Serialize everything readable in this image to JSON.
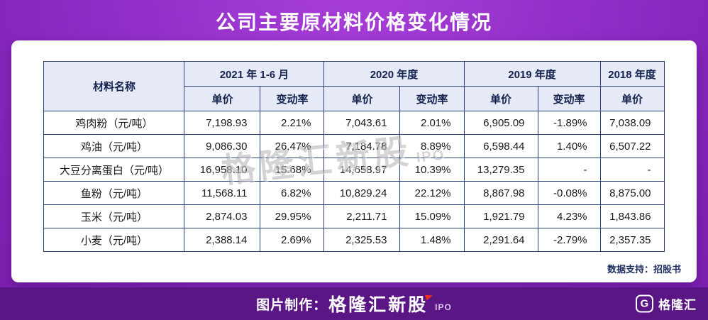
{
  "chart_data": {
    "type": "table",
    "title": "公司主要原材料价格变化情况",
    "material_header": "材料名称",
    "column_groups": [
      "2021 年 1-6 月",
      "2020 年度",
      "2019 年度",
      "2018 年度"
    ],
    "sub_columns": [
      "单价",
      "变动率",
      "单价",
      "变动率",
      "单价",
      "变动率",
      "单价"
    ],
    "rows": [
      {
        "name": "鸡肉粉（元/吨）",
        "values": [
          "7,198.93",
          "2.21%",
          "7,043.61",
          "2.01%",
          "6,905.09",
          "-1.89%",
          "7,038.09"
        ]
      },
      {
        "name": "鸡油（元/吨）",
        "values": [
          "9,086.30",
          "26.47%",
          "7,184.78",
          "8.89%",
          "6,598.44",
          "1.40%",
          "6,507.22"
        ]
      },
      {
        "name": "大豆分离蛋白（元/吨）",
        "values": [
          "16,958.10",
          "15.68%",
          "14,658.97",
          "10.39%",
          "13,279.35",
          "-",
          "-"
        ]
      },
      {
        "name": "鱼粉（元/吨）",
        "values": [
          "11,568.11",
          "6.82%",
          "10,829.24",
          "22.12%",
          "8,867.98",
          "-0.08%",
          "8,875.00"
        ]
      },
      {
        "name": "玉米（元/吨）",
        "values": [
          "2,874.03",
          "29.95%",
          "2,211.71",
          "15.09%",
          "1,921.79",
          "4.23%",
          "1,843.86"
        ]
      },
      {
        "name": "小麦（元/吨）",
        "values": [
          "2,388.14",
          "2.69%",
          "2,325.53",
          "1.48%",
          "2,291.64",
          "-2.79%",
          "2,357.35"
        ]
      }
    ]
  },
  "footer_note": "数据支持：招股书",
  "bottom_bar": {
    "label": "图片制作：",
    "brand": "格隆汇新股",
    "brand_sub": "IPO"
  },
  "logo": {
    "mark": "G",
    "text": "格隆汇"
  },
  "watermark": {
    "text": "格隆汇新股",
    "sub": "IPO"
  },
  "colors": {
    "background_purple": "#8d2bc4",
    "bar_purple": "#5a1685",
    "header_fill": "#e6e9f6",
    "border_navy": "#2b4173",
    "accent_red": "#ef2d24"
  }
}
